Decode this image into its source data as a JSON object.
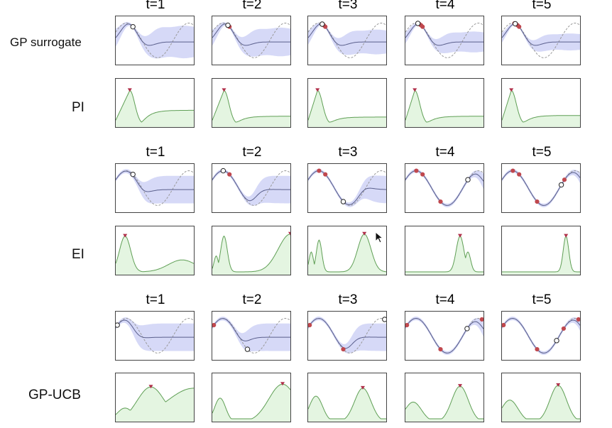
{
  "rows": [
    {
      "label": "GP surrogate",
      "titles": [
        "t=1",
        "t=2",
        "t=3",
        "t=4",
        "t=5"
      ]
    },
    {
      "label": "PI"
    },
    {
      "label": "",
      "titles": [
        "t=1",
        "t=2",
        "t=3",
        "t=4",
        "t=5"
      ]
    },
    {
      "label": "EI"
    },
    {
      "label": "",
      "titles": [
        "t=1",
        "t=2",
        "t=3",
        "t=4",
        "t=5"
      ]
    },
    {
      "label": "GP-UCB"
    }
  ],
  "colors": {
    "band": "#d6d9f7",
    "mean": "#5a5f8c",
    "target": "#9a9a9a",
    "obs": "#c0484e",
    "acq_fill": "#e4f5e1",
    "acq_line": "#5f9f55",
    "marker": "#b0304a"
  }
}
